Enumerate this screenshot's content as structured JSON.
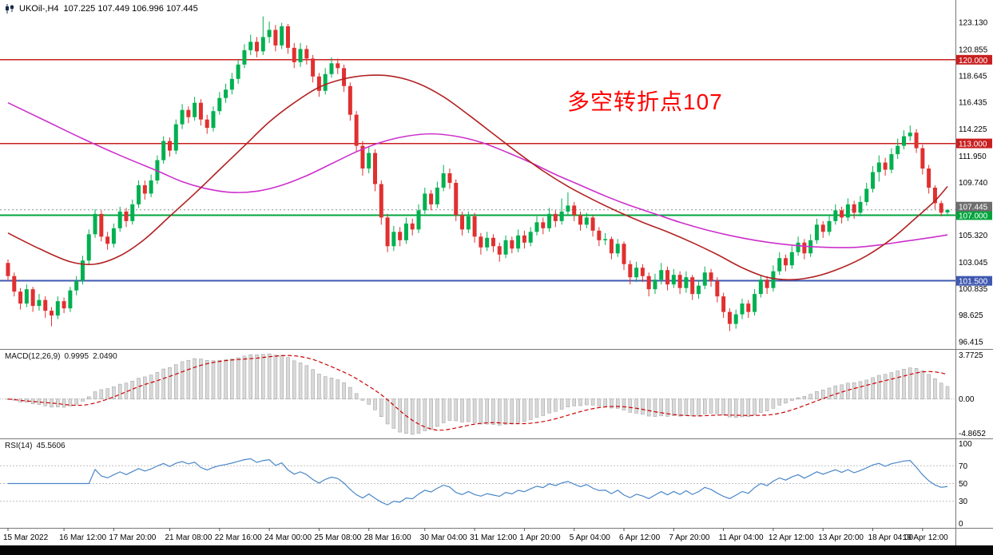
{
  "header": {
    "symbol_period": "UKOil-,H4",
    "ohlc": "107.225 107.449 106.996 107.445"
  },
  "main_chart": {
    "annotation": {
      "text": "多空转折点107",
      "color": "#ff0000"
    },
    "ma_fast": {
      "color": "#b22222",
      "points": [
        [
          0,
          105.5
        ],
        [
          5,
          104.2
        ],
        [
          10,
          103.1
        ],
        [
          14,
          102.9
        ],
        [
          18,
          103.6
        ],
        [
          22,
          105.0
        ],
        [
          26,
          106.9
        ],
        [
          30,
          108.8
        ],
        [
          34,
          110.8
        ],
        [
          38,
          112.8
        ],
        [
          42,
          114.8
        ],
        [
          46,
          116.4
        ],
        [
          50,
          117.7
        ],
        [
          54,
          118.4
        ],
        [
          58,
          118.7
        ],
        [
          62,
          118.6
        ],
        [
          66,
          118.0
        ],
        [
          70,
          116.9
        ],
        [
          74,
          115.4
        ],
        [
          78,
          113.8
        ],
        [
          82,
          112.2
        ],
        [
          86,
          110.7
        ],
        [
          90,
          109.4
        ],
        [
          94,
          108.3
        ],
        [
          98,
          107.3
        ],
        [
          102,
          106.4
        ],
        [
          106,
          105.6
        ],
        [
          110,
          104.7
        ],
        [
          114,
          103.7
        ],
        [
          118,
          102.6
        ],
        [
          122,
          101.8
        ],
        [
          126,
          101.6
        ],
        [
          130,
          101.9
        ],
        [
          134,
          102.6
        ],
        [
          138,
          103.6
        ],
        [
          142,
          105.0
        ],
        [
          146,
          106.8
        ],
        [
          149,
          108.2
        ],
        [
          151,
          109.4
        ]
      ]
    },
    "ma_slow": {
      "color": "#cc2fcc",
      "points": [
        [
          0,
          116.4
        ],
        [
          6,
          114.9
        ],
        [
          12,
          113.4
        ],
        [
          18,
          112.0
        ],
        [
          24,
          110.7
        ],
        [
          28,
          109.8
        ],
        [
          32,
          109.2
        ],
        [
          36,
          108.9
        ],
        [
          40,
          109.0
        ],
        [
          44,
          109.5
        ],
        [
          48,
          110.3
        ],
        [
          52,
          111.3
        ],
        [
          56,
          112.3
        ],
        [
          60,
          113.1
        ],
        [
          64,
          113.6
        ],
        [
          68,
          113.8
        ],
        [
          72,
          113.6
        ],
        [
          76,
          113.1
        ],
        [
          80,
          112.3
        ],
        [
          84,
          111.4
        ],
        [
          88,
          110.4
        ],
        [
          92,
          109.5
        ],
        [
          96,
          108.6
        ],
        [
          100,
          107.8
        ],
        [
          104,
          107.1
        ],
        [
          108,
          106.4
        ],
        [
          112,
          105.8
        ],
        [
          116,
          105.3
        ],
        [
          120,
          104.9
        ],
        [
          124,
          104.6
        ],
        [
          128,
          104.4
        ],
        [
          132,
          104.3
        ],
        [
          136,
          104.3
        ],
        [
          140,
          104.5
        ],
        [
          144,
          104.8
        ],
        [
          148,
          105.1
        ],
        [
          151,
          105.35
        ]
      ]
    }
  },
  "chart_data": {
    "type": "candlestick",
    "symbol": "UKOil-",
    "timeframe": "H4",
    "current_bar": {
      "open": 107.225,
      "high": 107.449,
      "low": 106.996,
      "close": 107.445
    },
    "ylim": [
      95.8,
      125.0
    ],
    "up_color": "#00b050",
    "down_color": "#e03030",
    "price_ticks": [
      "123.130",
      "120.855",
      "118.645",
      "116.435",
      "114.225",
      "111.950",
      "109.740",
      "105.320",
      "103.045",
      "100.835",
      "98.625",
      "96.415"
    ],
    "levels": [
      {
        "price": 120.0,
        "label": "120.000",
        "color": "#c82020",
        "line_width": 1.4
      },
      {
        "price": 113.0,
        "label": "113.000",
        "color": "#c82020",
        "line_width": 1.4
      },
      {
        "price": 107.0,
        "label": "107.000",
        "color": "#00a43c",
        "line_width": 2
      },
      {
        "price": 101.5,
        "label": "101.500",
        "color": "#3f58b0",
        "line_width": 2
      }
    ],
    "current_price": {
      "value": 107.445,
      "label": "107.445",
      "line_color": "#909090",
      "tag_color": "#6e6e6e"
    },
    "candles": [
      [
        103,
        103.3,
        101.5,
        101.9
      ],
      [
        101.9,
        102.2,
        100.2,
        100.6
      ],
      [
        100.6,
        100.9,
        99.1,
        99.6
      ],
      [
        99.6,
        101.2,
        99.3,
        100.8
      ],
      [
        100.8,
        101,
        98.9,
        99.4
      ],
      [
        99.4,
        100.4,
        99,
        99.9
      ],
      [
        99.9,
        100.2,
        98.4,
        99
      ],
      [
        99,
        99.3,
        97.7,
        98.6
      ],
      [
        98.6,
        100.2,
        98.3,
        99.8
      ],
      [
        99.8,
        100.1,
        98.8,
        99.2
      ],
      [
        99.2,
        101,
        98.9,
        100.7
      ],
      [
        100.7,
        101.9,
        100.3,
        101.5
      ],
      [
        101.5,
        103.6,
        101.2,
        103.2
      ],
      [
        103.2,
        105.8,
        102.9,
        105.4
      ],
      [
        105.4,
        107.5,
        105.1,
        107.1
      ],
      [
        107.1,
        107.4,
        104.8,
        105.2
      ],
      [
        105.2,
        105.6,
        104.1,
        104.6
      ],
      [
        104.6,
        106.3,
        104.3,
        105.9
      ],
      [
        105.9,
        107.7,
        105.6,
        107.3
      ],
      [
        107.3,
        107.6,
        106,
        106.5
      ],
      [
        106.5,
        108.3,
        106.2,
        107.9
      ],
      [
        107.9,
        109.9,
        107.6,
        109.5
      ],
      [
        109.5,
        109.9,
        108.3,
        108.8
      ],
      [
        108.8,
        110.4,
        108.5,
        109.9
      ],
      [
        109.9,
        112,
        109.6,
        111.6
      ],
      [
        111.6,
        113.6,
        111.3,
        113.2
      ],
      [
        113.2,
        113.5,
        111.9,
        112.4
      ],
      [
        112.4,
        115,
        112.1,
        114.6
      ],
      [
        114.6,
        116.3,
        114.2,
        115.8
      ],
      [
        115.8,
        116.1,
        114.7,
        115.2
      ],
      [
        115.2,
        116.9,
        114.9,
        116.4
      ],
      [
        116.4,
        116.7,
        114.5,
        115
      ],
      [
        115,
        115.4,
        113.8,
        114.3
      ],
      [
        114.3,
        116.1,
        114,
        115.7
      ],
      [
        115.7,
        117.3,
        115.4,
        116.8
      ],
      [
        116.8,
        118,
        116.4,
        117.5
      ],
      [
        117.5,
        118.9,
        117.1,
        118.4
      ],
      [
        118.4,
        120,
        118,
        119.6
      ],
      [
        119.6,
        121.3,
        119.3,
        120.8
      ],
      [
        120.8,
        122.1,
        120.4,
        121.5
      ],
      [
        121.5,
        121.9,
        120.2,
        120.7
      ],
      [
        120.7,
        123.63,
        120.4,
        121.9
      ],
      [
        121.9,
        123.2,
        121.4,
        122.5
      ],
      [
        122.5,
        122.9,
        120.7,
        121.2
      ],
      [
        121.2,
        123.1,
        120.9,
        122.8
      ],
      [
        122.8,
        123,
        120.5,
        121
      ],
      [
        121,
        121.4,
        119.3,
        119.8
      ],
      [
        119.8,
        121.4,
        119.4,
        120.9
      ],
      [
        120.9,
        121.2,
        119.6,
        120.1
      ],
      [
        120.1,
        120.4,
        118.1,
        118.6
      ],
      [
        118.6,
        118.9,
        116.9,
        117.4
      ],
      [
        117.4,
        119.3,
        117.1,
        118.8
      ],
      [
        118.8,
        120.2,
        118.5,
        119.7
      ],
      [
        119.7,
        120.1,
        118.8,
        119.3
      ],
      [
        119.3,
        119.6,
        117.3,
        117.8
      ],
      [
        117.8,
        118.1,
        114.9,
        115.4
      ],
      [
        115.4,
        115.7,
        112.3,
        112.8
      ],
      [
        112.8,
        113.2,
        110.3,
        110.9
      ],
      [
        110.9,
        112.7,
        110.5,
        112.2
      ],
      [
        112.2,
        112.5,
        109,
        109.6
      ],
      [
        109.6,
        109.9,
        106.2,
        106.8
      ],
      [
        106.8,
        107.1,
        103.9,
        104.4
      ],
      [
        104.4,
        106.1,
        104,
        105.6
      ],
      [
        105.6,
        106,
        104.4,
        104.9
      ],
      [
        104.9,
        106.8,
        104.6,
        106.3
      ],
      [
        106.3,
        106.7,
        105.3,
        105.8
      ],
      [
        105.8,
        107.9,
        105.5,
        107.4
      ],
      [
        107.4,
        109.3,
        107.1,
        108.8
      ],
      [
        108.8,
        109.1,
        107.4,
        107.9
      ],
      [
        107.9,
        109.8,
        107.6,
        109.3
      ],
      [
        109.3,
        111.2,
        109,
        110.5
      ],
      [
        110.5,
        110.9,
        109.2,
        109.7
      ],
      [
        109.7,
        110,
        106.5,
        107
      ],
      [
        107,
        107.3,
        105.3,
        105.8
      ],
      [
        105.8,
        107.3,
        105.5,
        106.9
      ],
      [
        106.9,
        107.2,
        104.7,
        105.2
      ],
      [
        105.2,
        105.5,
        103.7,
        104.3
      ],
      [
        104.3,
        105.6,
        104,
        105.1
      ],
      [
        105.1,
        105.4,
        103.9,
        104.4
      ],
      [
        104.4,
        104.7,
        103.1,
        103.7
      ],
      [
        103.7,
        105.3,
        103.4,
        104.9
      ],
      [
        104.9,
        105.2,
        103.8,
        104.2
      ],
      [
        104.2,
        105.8,
        103.9,
        105.3
      ],
      [
        105.3,
        105.7,
        104.2,
        104.7
      ],
      [
        104.7,
        106,
        104.4,
        105.6
      ],
      [
        105.6,
        106.9,
        105.3,
        106.4
      ],
      [
        106.4,
        106.8,
        105.4,
        105.9
      ],
      [
        105.9,
        107.6,
        105.6,
        107.1
      ],
      [
        107.1,
        107.4,
        106,
        106.5
      ],
      [
        106.5,
        108.4,
        106.2,
        107.3
      ],
      [
        107.3,
        108.9,
        107,
        107.8
      ],
      [
        107.8,
        108.1,
        106.5,
        107
      ],
      [
        107,
        107.3,
        105.7,
        106.2
      ],
      [
        106.2,
        107.2,
        105.9,
        106.8
      ],
      [
        106.8,
        107,
        105.2,
        105.7
      ],
      [
        105.7,
        106,
        104.4,
        104.9
      ],
      [
        104.9,
        105.5,
        104.5,
        105
      ],
      [
        105,
        105.2,
        103.3,
        103.8
      ],
      [
        103.8,
        105,
        103.5,
        104.6
      ],
      [
        104.6,
        104.8,
        102.4,
        102.9
      ],
      [
        102.9,
        103.2,
        101.2,
        101.8
      ],
      [
        101.8,
        103.1,
        101.4,
        102.6
      ],
      [
        102.6,
        102.9,
        101.4,
        101.9
      ],
      [
        101.9,
        102.2,
        100.2,
        100.8
      ],
      [
        100.8,
        102.1,
        100.4,
        101.6
      ],
      [
        101.6,
        103,
        101.2,
        102.4
      ],
      [
        102.4,
        102.7,
        100.7,
        101.2
      ],
      [
        101.2,
        102.5,
        100.9,
        102
      ],
      [
        102,
        102.3,
        100.4,
        100.9
      ],
      [
        100.9,
        102.3,
        100.5,
        101.8
      ],
      [
        101.8,
        102,
        99.9,
        100.4
      ],
      [
        100.4,
        101.6,
        100,
        101.1
      ],
      [
        101.1,
        102.7,
        100.8,
        102.2
      ],
      [
        102.2,
        102.5,
        101,
        101.5
      ],
      [
        101.5,
        101.8,
        99.7,
        100.2
      ],
      [
        100.2,
        100.5,
        98.4,
        98.9
      ],
      [
        98.9,
        99.2,
        97.3,
        97.9
      ],
      [
        97.9,
        99.1,
        97.5,
        98.7
      ],
      [
        98.7,
        100,
        98.3,
        99.6
      ],
      [
        99.6,
        99.9,
        98.4,
        98.9
      ],
      [
        98.9,
        100.8,
        98.6,
        100.4
      ],
      [
        100.4,
        102,
        100.1,
        101.6
      ],
      [
        101.6,
        101.9,
        100.4,
        100.9
      ],
      [
        100.9,
        102.8,
        100.6,
        102.3
      ],
      [
        102.3,
        103.9,
        102,
        103.4
      ],
      [
        103.4,
        103.7,
        102.3,
        102.8
      ],
      [
        102.8,
        104.4,
        102.5,
        103.9
      ],
      [
        103.9,
        105.2,
        103.6,
        104.7
      ],
      [
        104.7,
        105,
        103.3,
        103.8
      ],
      [
        103.8,
        105.4,
        103.5,
        104.9
      ],
      [
        104.9,
        106.7,
        104.6,
        106.2
      ],
      [
        106.2,
        106.5,
        105.1,
        105.6
      ],
      [
        105.6,
        107,
        105.3,
        106.5
      ],
      [
        106.5,
        107.9,
        106.2,
        107.4
      ],
      [
        107.4,
        107.7,
        106.3,
        106.8
      ],
      [
        106.8,
        108.4,
        106.5,
        107.9
      ],
      [
        107.9,
        108.2,
        106.7,
        107.2
      ],
      [
        107.2,
        108.6,
        106.9,
        108.1
      ],
      [
        108.1,
        109.7,
        107.8,
        109.2
      ],
      [
        109.2,
        111.1,
        108.9,
        110.6
      ],
      [
        110.6,
        112,
        109.8,
        111.4
      ],
      [
        111.4,
        111.8,
        110.3,
        110.8
      ],
      [
        110.8,
        112.6,
        110.5,
        112.1
      ],
      [
        112.1,
        113.4,
        111.7,
        112.8
      ],
      [
        112.8,
        114.1,
        112.5,
        113.6
      ],
      [
        113.6,
        114.5,
        113.2,
        113.9
      ],
      [
        113.9,
        114.2,
        112.2,
        112.6
      ],
      [
        112.6,
        112.9,
        110.4,
        110.9
      ],
      [
        110.9,
        111.2,
        108.8,
        109.3
      ],
      [
        109.3,
        109.5,
        107.5,
        108
      ],
      [
        108,
        108.2,
        106.9,
        107.2
      ],
      [
        107.225,
        107.449,
        106.996,
        107.445
      ]
    ],
    "x_labels": [
      "15 Mar 2022",
      "16 Mar 12:00",
      "17 Mar 20:00",
      "21 Mar 08:00",
      "22 Mar 16:00",
      "24 Mar 00:00",
      "25 Mar 08:00",
      "28 Mar 16:00",
      "30 Mar 04:00",
      "31 Mar 12:00",
      "1 Apr 20:00",
      "5 Apr 04:00",
      "6 Apr 12:00",
      "7 Apr 20:00",
      "11 Apr 04:00",
      "12 Apr 12:00",
      "13 Apr 20:00",
      "18 Apr 04:00",
      "19 Apr 12:00"
    ],
    "x_label_bar_indices": [
      0,
      9,
      17,
      26,
      34,
      42,
      50,
      58,
      67,
      75,
      83,
      91,
      99,
      107,
      115,
      123,
      131,
      139,
      147
    ]
  },
  "macd_panel": {
    "title": "MACD(12,26,9)",
    "value_main": "0.9995",
    "value_signal": "2.0490",
    "params": {
      "fast": 12,
      "slow": 26,
      "signal": 9
    },
    "axis_labels": {
      "top": "3.7725",
      "zero": "0.00",
      "bottom": "-4.8652"
    },
    "histogram_fill": "#d9d9d9",
    "histogram_stroke": "#9a9a9a",
    "signal_color": "#cc0000"
  },
  "rsi_panel": {
    "title": "RSI(14)",
    "value": "45.5606",
    "period": 14,
    "line_color": "#4a86c8",
    "levels": [
      70,
      50,
      30
    ],
    "axis_labels": [
      "100",
      "70",
      "50",
      "30",
      "0"
    ]
  }
}
